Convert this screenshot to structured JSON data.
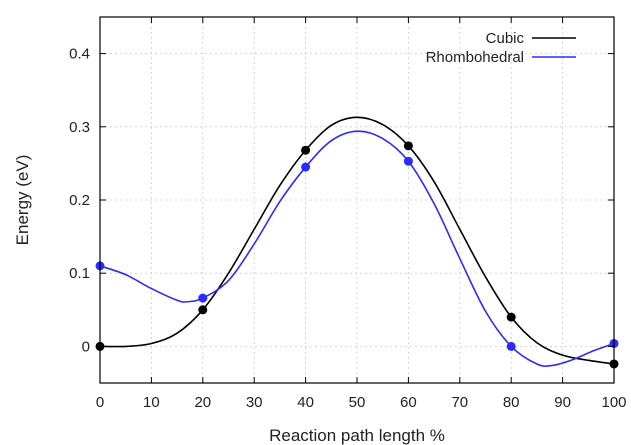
{
  "chart_data": {
    "type": "line",
    "title": "",
    "xlabel": "Reaction path length %",
    "ylabel": "Energy (eV)",
    "xlim": [
      0,
      100
    ],
    "ylim": [
      -0.05,
      0.45
    ],
    "xticks": [
      "0",
      "10",
      "20",
      "30",
      "40",
      "50",
      "60",
      "70",
      "80",
      "90",
      "100"
    ],
    "yticks": [
      "0",
      "0.1",
      "0.2",
      "0.3",
      "0.4"
    ],
    "grid": true,
    "legend_position": "top-right",
    "series": [
      {
        "name": "Cubic",
        "color": "#000000",
        "points": [
          {
            "x": 0,
            "y": 0.0
          },
          {
            "x": 20,
            "y": 0.05
          },
          {
            "x": 40,
            "y": 0.268
          },
          {
            "x": 60,
            "y": 0.274
          },
          {
            "x": 80,
            "y": 0.04
          },
          {
            "x": 100,
            "y": -0.024
          }
        ],
        "curve": [
          {
            "x": 0,
            "y": 0.0
          },
          {
            "x": 5,
            "y": 0.0
          },
          {
            "x": 10,
            "y": 0.004
          },
          {
            "x": 15,
            "y": 0.018
          },
          {
            "x": 20,
            "y": 0.05
          },
          {
            "x": 25,
            "y": 0.1
          },
          {
            "x": 30,
            "y": 0.16
          },
          {
            "x": 35,
            "y": 0.22
          },
          {
            "x": 40,
            "y": 0.268
          },
          {
            "x": 45,
            "y": 0.302
          },
          {
            "x": 50,
            "y": 0.313
          },
          {
            "x": 55,
            "y": 0.303
          },
          {
            "x": 60,
            "y": 0.274
          },
          {
            "x": 65,
            "y": 0.225
          },
          {
            "x": 70,
            "y": 0.16
          },
          {
            "x": 75,
            "y": 0.095
          },
          {
            "x": 80,
            "y": 0.04
          },
          {
            "x": 85,
            "y": 0.005
          },
          {
            "x": 90,
            "y": -0.012
          },
          {
            "x": 95,
            "y": -0.019
          },
          {
            "x": 100,
            "y": -0.024
          }
        ]
      },
      {
        "name": "Rhombohedral",
        "color": "#2b2bff",
        "points": [
          {
            "x": 0,
            "y": 0.11
          },
          {
            "x": 20,
            "y": 0.066
          },
          {
            "x": 40,
            "y": 0.245
          },
          {
            "x": 60,
            "y": 0.253
          },
          {
            "x": 80,
            "y": 0.0
          },
          {
            "x": 100,
            "y": 0.004
          }
        ],
        "curve": [
          {
            "x": 0,
            "y": 0.11
          },
          {
            "x": 5,
            "y": 0.098
          },
          {
            "x": 10,
            "y": 0.079
          },
          {
            "x": 15,
            "y": 0.063
          },
          {
            "x": 17,
            "y": 0.061
          },
          {
            "x": 20,
            "y": 0.066
          },
          {
            "x": 25,
            "y": 0.09
          },
          {
            "x": 30,
            "y": 0.14
          },
          {
            "x": 35,
            "y": 0.198
          },
          {
            "x": 40,
            "y": 0.245
          },
          {
            "x": 45,
            "y": 0.281
          },
          {
            "x": 50,
            "y": 0.294
          },
          {
            "x": 55,
            "y": 0.284
          },
          {
            "x": 60,
            "y": 0.253
          },
          {
            "x": 65,
            "y": 0.195
          },
          {
            "x": 70,
            "y": 0.12
          },
          {
            "x": 75,
            "y": 0.048
          },
          {
            "x": 80,
            "y": 0.0
          },
          {
            "x": 85,
            "y": -0.024
          },
          {
            "x": 88,
            "y": -0.026
          },
          {
            "x": 92,
            "y": -0.018
          },
          {
            "x": 96,
            "y": -0.006
          },
          {
            "x": 100,
            "y": 0.004
          }
        ]
      }
    ]
  }
}
